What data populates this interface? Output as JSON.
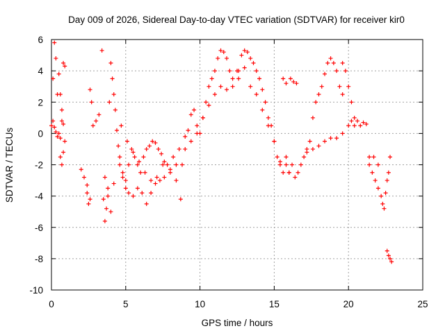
{
  "chart_data": {
    "type": "scatter",
    "title": "Day 009 of 2026, Sidereal Day-to-day VTEC variation (SDTVAR) for receiver kir0",
    "xlabel": "GPS time / hours",
    "ylabel": "SDTVAR / TECUs",
    "xlim": [
      0,
      25
    ],
    "ylim": [
      -10,
      6
    ],
    "xticks": [
      0,
      5,
      10,
      15,
      20,
      25
    ],
    "yticks": [
      -10,
      -8,
      -6,
      -4,
      -2,
      0,
      2,
      4,
      6
    ],
    "grid": true,
    "marker": "+",
    "series": [
      {
        "name": "SDTVAR",
        "color": "#ff0000",
        "x": [
          0.0,
          0.1,
          0.2,
          0.3,
          0.4,
          0.5,
          0.6,
          0.7,
          0.8,
          0.9,
          0.1,
          0.2,
          0.3,
          0.4,
          0.5,
          0.6,
          0.7,
          0.8,
          0.9,
          0.6,
          0.7,
          0.8,
          2.0,
          2.2,
          2.4,
          2.5,
          2.6,
          2.7,
          2.8,
          3.0,
          3.2,
          3.4,
          3.5,
          3.6,
          3.7,
          3.8,
          3.9,
          4.0,
          4.1,
          4.2,
          4.3,
          4.4,
          4.5,
          2.4,
          2.6,
          3.6,
          3.8,
          4.0,
          4.2,
          4.6,
          4.8,
          5.0,
          5.2,
          5.4,
          5.6,
          5.8,
          6.0,
          6.2,
          6.4,
          6.6,
          6.8,
          7.0,
          7.2,
          7.4,
          7.6,
          7.8,
          8.0,
          8.2,
          8.4,
          8.6,
          4.6,
          4.8,
          5.0,
          5.2,
          5.5,
          5.8,
          6.1,
          6.4,
          6.7,
          7.0,
          7.3,
          7.6,
          8.0,
          8.4,
          8.7,
          4.7,
          5.1,
          5.5,
          5.9,
          6.3,
          6.7,
          7.1,
          7.5,
          8.8,
          9.0,
          9.2,
          9.4,
          9.6,
          9.8,
          10.0,
          10.2,
          10.4,
          10.6,
          10.8,
          11.0,
          11.2,
          11.4,
          11.6,
          11.8,
          12.0,
          9.0,
          9.4,
          9.8,
          10.2,
          10.6,
          11.0,
          11.4,
          11.8,
          12.2,
          12.6,
          12.2,
          12.5,
          12.8,
          13.0,
          13.2,
          13.4,
          13.6,
          13.8,
          14.0,
          14.2,
          14.4,
          14.6,
          14.8,
          15.0,
          15.2,
          15.4,
          15.6,
          15.8,
          16.0,
          12.6,
          13.0,
          13.4,
          13.8,
          14.2,
          14.6,
          15.0,
          15.4,
          15.8,
          15.6,
          15.8,
          16.0,
          16.2,
          16.4,
          16.6,
          16.8,
          17.0,
          17.2,
          17.4,
          17.6,
          17.8,
          18.0,
          18.2,
          18.4,
          18.6,
          18.8,
          19.0,
          19.2,
          19.4,
          19.6,
          16.1,
          16.3,
          16.5,
          17.2,
          17.6,
          18.0,
          18.4,
          18.8,
          19.2,
          19.6,
          20.0,
          20.2,
          20.4,
          20.6,
          20.8,
          21.0,
          21.2,
          19.6,
          19.8,
          20.0,
          20.2,
          20.4,
          21.4,
          21.6,
          21.8,
          22.0,
          22.2,
          22.3,
          22.4,
          22.5,
          22.6,
          22.7,
          22.8,
          21.4,
          21.7,
          22.0,
          22.6,
          22.7,
          22.8,
          22.9
        ],
        "y": [
          0.5,
          3.5,
          5.8,
          4.8,
          2.5,
          0.0,
          -0.3,
          0.8,
          4.5,
          4.3,
          0.8,
          0.4,
          0.1,
          -0.2,
          3.8,
          2.5,
          1.5,
          0.6,
          -0.5,
          -1.5,
          -2.0,
          -1.2,
          -2.3,
          -2.8,
          -3.3,
          -4.5,
          2.8,
          2.0,
          0.5,
          0.8,
          1.2,
          5.3,
          -4.2,
          -5.6,
          -4.8,
          -3.5,
          2.0,
          4.5,
          3.5,
          2.5,
          1.5,
          0.2,
          -0.8,
          -3.8,
          -4.2,
          -2.8,
          -4.0,
          -5.0,
          -3.2,
          -1.5,
          -2.5,
          -3.0,
          -2.0,
          -1.0,
          -1.5,
          -2.0,
          -2.5,
          -1.5,
          -1.0,
          -0.8,
          -0.5,
          -0.6,
          -1.0,
          -1.3,
          -1.8,
          -2.0,
          -2.5,
          -1.5,
          -2.0,
          -1.0,
          -2.0,
          -2.8,
          -3.5,
          -3.8,
          -4.0,
          -3.5,
          -3.8,
          -4.5,
          -3.8,
          -3.2,
          -3.0,
          -2.8,
          -2.3,
          -3.0,
          -4.2,
          0.5,
          -0.5,
          -1.2,
          -1.8,
          -2.5,
          -3.0,
          -2.8,
          -2.0,
          -2.0,
          -1.0,
          0.2,
          1.2,
          1.5,
          0.5,
          0.0,
          1.0,
          2.0,
          3.0,
          3.5,
          4.0,
          4.8,
          5.3,
          5.2,
          4.8,
          4.0,
          -0.2,
          -0.5,
          0.0,
          1.0,
          1.8,
          2.5,
          3.0,
          2.8,
          3.5,
          4.0,
          3.0,
          4.0,
          5.0,
          5.3,
          5.2,
          4.8,
          4.5,
          4.0,
          3.5,
          2.8,
          2.0,
          1.0,
          0.5,
          -0.5,
          -1.5,
          -2.0,
          -2.5,
          -1.5,
          -2.5,
          3.5,
          4.2,
          3.0,
          2.5,
          1.5,
          0.5,
          -0.5,
          -1.8,
          -2.0,
          3.5,
          3.2,
          -2.5,
          -2.0,
          -2.8,
          -2.5,
          -2.0,
          -1.5,
          -1.0,
          -0.5,
          1.0,
          2.0,
          2.5,
          3.0,
          3.8,
          4.5,
          4.8,
          4.5,
          4.0,
          3.0,
          2.5,
          3.5,
          3.3,
          3.2,
          -1.2,
          -1.0,
          -0.8,
          -0.5,
          -0.3,
          -0.3,
          0.0,
          0.5,
          0.8,
          1.0,
          0.8,
          0.5,
          0.7,
          0.6,
          4.5,
          4.0,
          3.0,
          2.0,
          0.5,
          -1.5,
          -2.5,
          -3.0,
          -3.5,
          -4.0,
          -4.5,
          -4.8,
          -3.8,
          -3.0,
          -2.5,
          -1.5,
          -2.0,
          -1.5,
          -2.0,
          -7.5,
          -7.8,
          -8.0,
          -8.2
        ]
      }
    ]
  }
}
